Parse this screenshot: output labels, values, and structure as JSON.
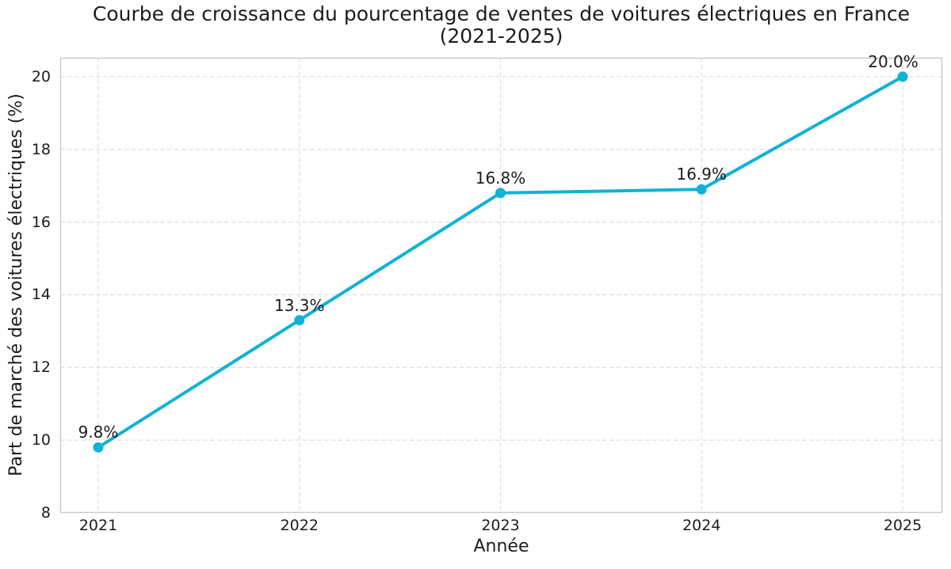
{
  "chart_data": {
    "type": "line",
    "title_line1": "Courbe de croissance du pourcentage de ventes de voitures électriques en France",
    "title_line2": "(2021-2025)",
    "xlabel": "Année",
    "ylabel": "Part de marché des voitures électriques (%)",
    "categories": [
      "2021",
      "2022",
      "2023",
      "2024",
      "2025"
    ],
    "series": [
      {
        "name": "Part de marché des voitures électriques",
        "values": [
          9.8,
          13.3,
          16.8,
          16.9,
          20.0
        ],
        "labels": [
          "9.8%",
          "13.3%",
          "16.8%",
          "16.9%",
          "20.0%"
        ]
      }
    ],
    "yticks": [
      8,
      10,
      12,
      14,
      16,
      18,
      20
    ],
    "ylim": [
      8,
      20.52
    ],
    "grid": "dashed",
    "legend": "none",
    "marker": "circle",
    "line_color": "#10b2d6",
    "grid_color": "#dbdbdb",
    "spine_color": "#c6c6c6",
    "text_color": "#1c1c1c",
    "background": "#ffffff"
  }
}
